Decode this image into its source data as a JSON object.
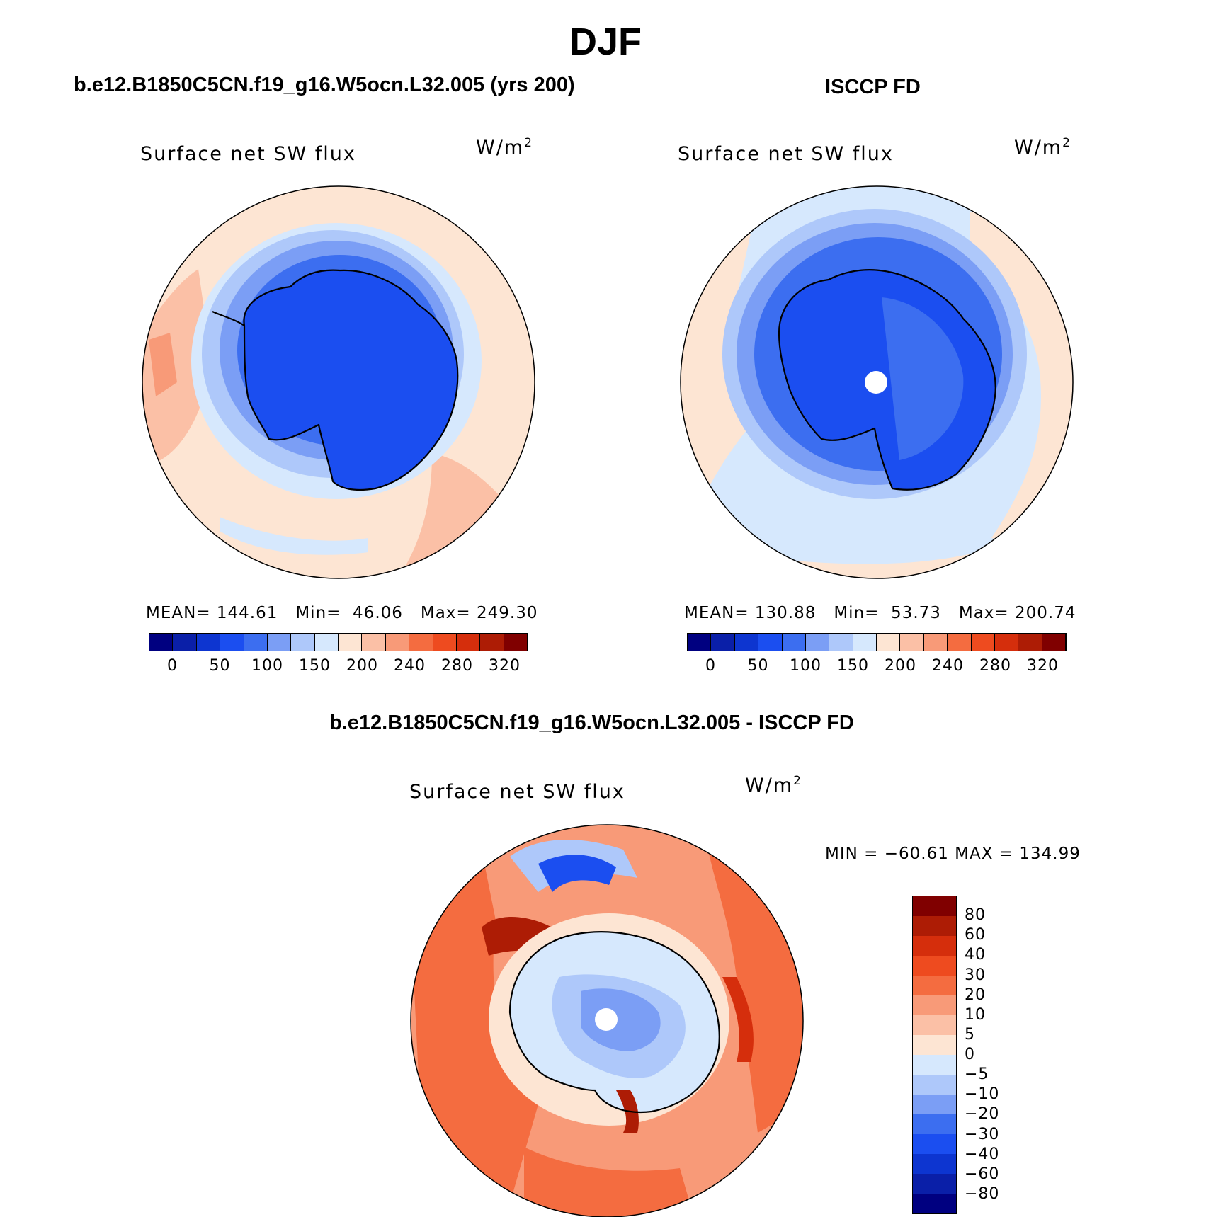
{
  "figure": {
    "title": "DJF",
    "panel_left_title": "b.e12.B1850C5CN.f19_g16.W5ocn.L32.005 (yrs 200)",
    "panel_right_title": "ISCCP FD",
    "panel_diff_title": "b.e12.B1850C5CN.f19_g16.W5ocn.L32.005 - ISCCP FD"
  },
  "panels": {
    "model": {
      "variable": "Surface net SW flux",
      "units": "W/m",
      "units_exp": "2",
      "mean_label": "MEAN=",
      "mean": "144.61",
      "min_label": "Min=",
      "min": "46.06",
      "max_label": "Max=",
      "max": "249.30"
    },
    "obs": {
      "variable": "Surface net SW flux",
      "units": "W/m",
      "units_exp": "2",
      "mean_label": "MEAN=",
      "mean": "130.88",
      "min_label": "Min=",
      "min": "53.73",
      "max_label": "Max=",
      "max": "200.74"
    },
    "diff": {
      "variable": "Surface net SW flux",
      "units": "W/m",
      "units_exp": "2",
      "min_label": "MIN =",
      "min": "−60.61",
      "max_label": "MAX =",
      "max": "134.99"
    }
  },
  "colorbar_abs": {
    "colors": [
      "#000080",
      "#0a1fa8",
      "#0d35d0",
      "#1b4ef0",
      "#3c6ef0",
      "#7b9ef5",
      "#aec8fa",
      "#d6e8fd",
      "#fde5d3",
      "#fbc0a6",
      "#f89a78",
      "#f46c40",
      "#ee4b1f",
      "#d52e0c",
      "#ad1c05",
      "#800000"
    ],
    "ticks": [
      "0",
      "50",
      "100",
      "150",
      "200",
      "240",
      "280",
      "320"
    ]
  },
  "colorbar_diff": {
    "colors": [
      "#000080",
      "#0a1fa8",
      "#0d35d0",
      "#1b4ef0",
      "#3c6ef0",
      "#7b9ef5",
      "#aec8fa",
      "#d6e8fd",
      "#fde5d3",
      "#fbc0a6",
      "#f89a78",
      "#f46c40",
      "#ee4b1f",
      "#d52e0c",
      "#ad1c05",
      "#800000"
    ],
    "ticks": [
      "80",
      "60",
      "40",
      "30",
      "20",
      "10",
      "5",
      "0",
      "−5",
      "−10",
      "−20",
      "−30",
      "−40",
      "−60",
      "−80"
    ]
  },
  "chart_data": [
    {
      "type": "heatmap",
      "title": "b.e12.B1850C5CN.f19_g16.W5ocn.L32.005 (yrs 200)",
      "subtitle": "Surface net SW flux",
      "units": "W/m2",
      "projection": "south polar stereographic",
      "season": "DJF",
      "levels": [
        0,
        25,
        50,
        75,
        100,
        125,
        150,
        175,
        200,
        220,
        240,
        260,
        280,
        300,
        320
      ],
      "mean": 144.61,
      "min": 46.06,
      "max": 249.3
    },
    {
      "type": "heatmap",
      "title": "ISCCP FD",
      "subtitle": "Surface net SW flux",
      "units": "W/m2",
      "projection": "south polar stereographic",
      "season": "DJF",
      "levels": [
        0,
        25,
        50,
        75,
        100,
        125,
        150,
        175,
        200,
        220,
        240,
        260,
        280,
        300,
        320
      ],
      "mean": 130.88,
      "min": 53.73,
      "max": 200.74
    },
    {
      "type": "heatmap",
      "title": "b.e12.B1850C5CN.f19_g16.W5ocn.L32.005 - ISCCP FD",
      "subtitle": "Surface net SW flux",
      "units": "W/m2",
      "projection": "south polar stereographic",
      "season": "DJF",
      "levels": [
        -80,
        -60,
        -40,
        -30,
        -20,
        -10,
        -5,
        0,
        5,
        10,
        20,
        30,
        40,
        60,
        80
      ],
      "min": -60.61,
      "max": 134.99
    }
  ]
}
